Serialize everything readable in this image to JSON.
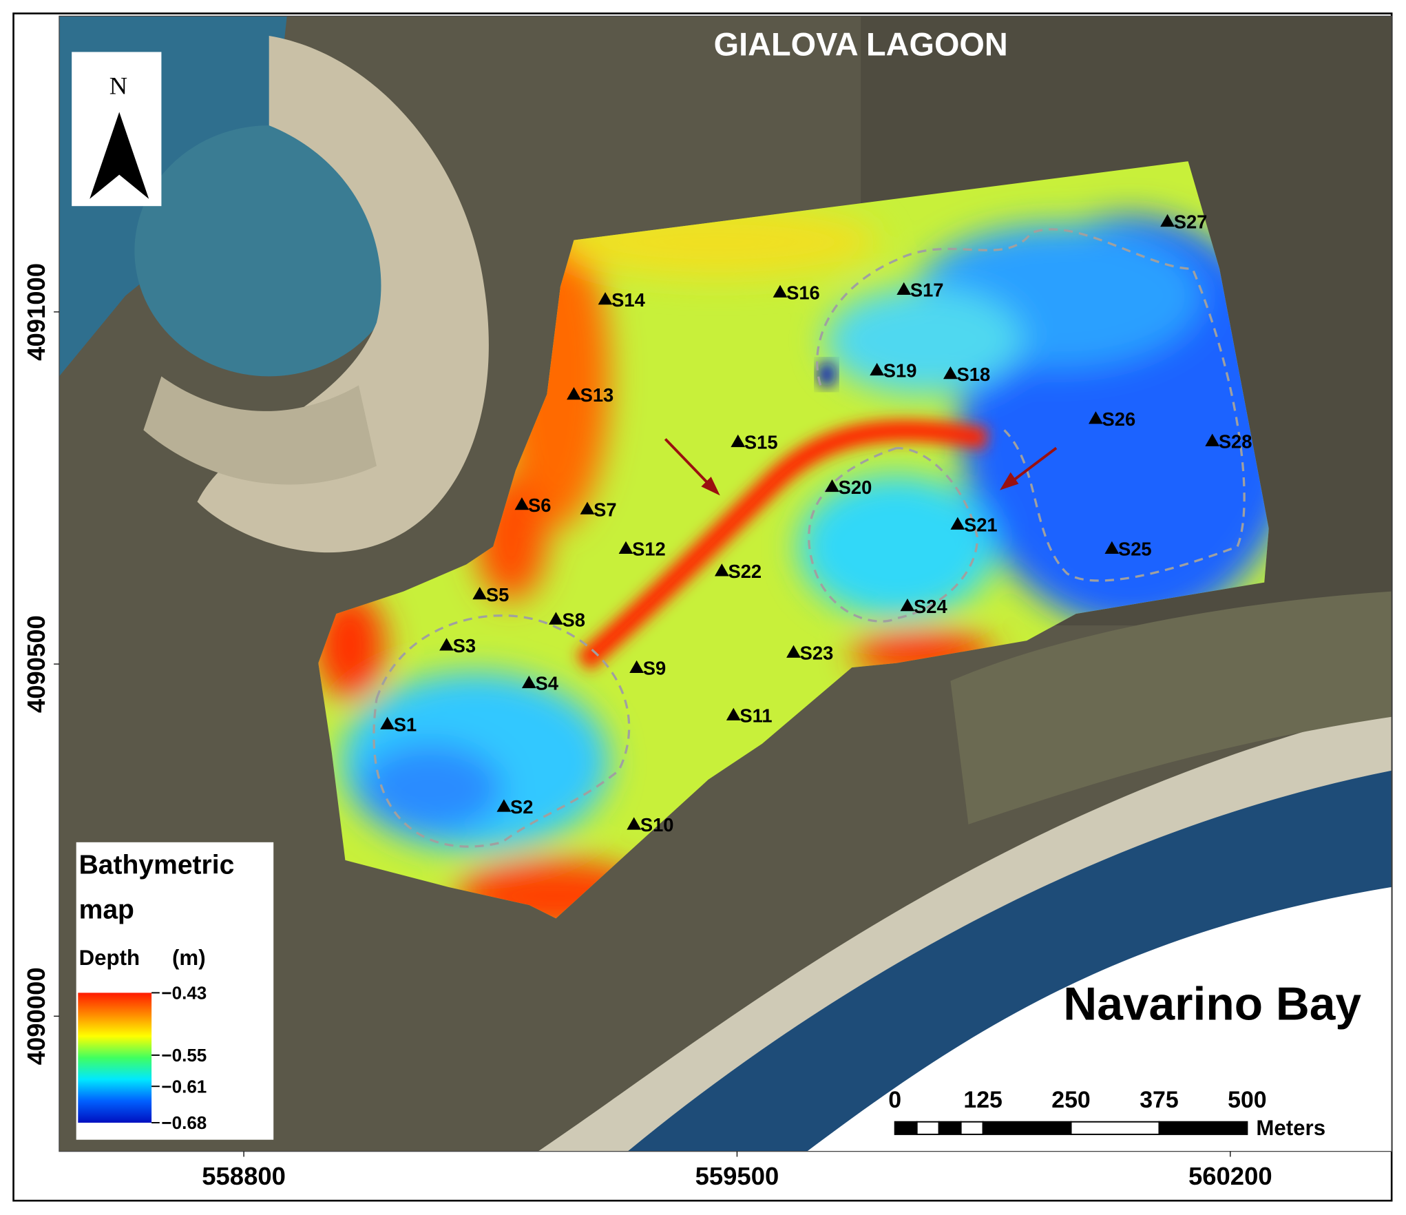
{
  "map": {
    "title": "GIALOVA LAGOON",
    "north_label": "N",
    "place_label": "Navarino Bay",
    "xlim": [
      558538,
      560429
    ],
    "ylim": [
      4089808,
      4091420
    ],
    "xticks": [
      558800,
      559500,
      560200
    ],
    "yticks": [
      4090000,
      4090500,
      4091000
    ],
    "stations": [
      "S1",
      "S2",
      "S3",
      "S4",
      "S5",
      "S6",
      "S7",
      "S8",
      "S9",
      "S10",
      "S11",
      "S12",
      "S13",
      "S14",
      "S15",
      "S16",
      "S17",
      "S18",
      "S19",
      "S20",
      "S21",
      "S22",
      "S23",
      "S24",
      "S25",
      "S26",
      "S27",
      "S28"
    ],
    "legend": {
      "title": [
        "Bathymetric",
        "map"
      ],
      "depth_label": "Depth",
      "unit_label": "(m)",
      "colors": [
        "#ff1a00",
        "#ff8a00",
        "#ffff00",
        "#40ff60",
        "#00e8ff",
        "#0060ff",
        "#0010c0"
      ],
      "ticks": [
        {
          "value": -0.43,
          "label": "−0.43"
        },
        {
          "value": -0.55,
          "label": "−0.55"
        },
        {
          "value": -0.61,
          "label": "−0.61"
        },
        {
          "value": -0.68,
          "label": "−0.68"
        }
      ]
    },
    "scale_bar": {
      "ticks": [
        0,
        125,
        250,
        375,
        500
      ],
      "unit_label": "Meters"
    }
  }
}
